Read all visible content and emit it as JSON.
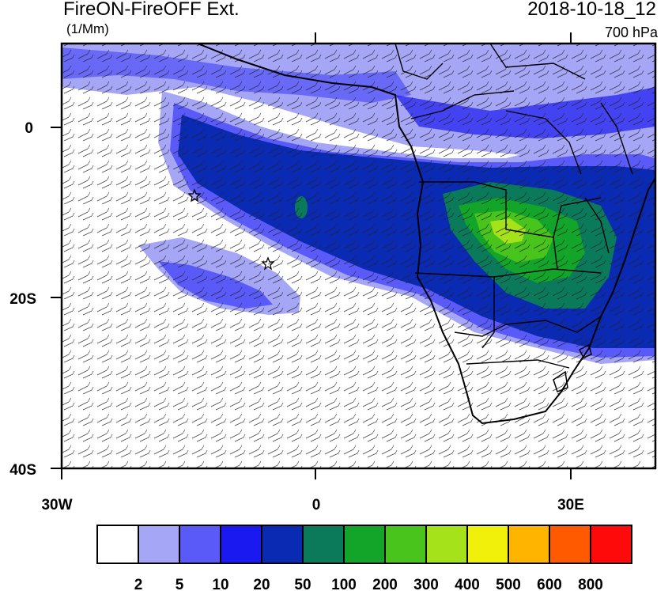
{
  "header": {
    "title": "FireON-FireOFF Ext.",
    "units": "(1/Mm)",
    "timestamp": "2018-10-18_12",
    "level": "700 hPa"
  },
  "map": {
    "lon_range": [
      -30,
      40
    ],
    "lat_range": [
      -40,
      10
    ],
    "lon_ticks": [
      {
        "value": -30,
        "label": "30W"
      },
      {
        "value": 0,
        "label": "0"
      },
      {
        "value": 30,
        "label": "30E"
      }
    ],
    "lat_ticks": [
      {
        "value": 0,
        "label": "0"
      },
      {
        "value": -20,
        "label": "20S"
      },
      {
        "value": -40,
        "label": "40S"
      }
    ],
    "markers": [
      {
        "type": "star",
        "lon": -14.5,
        "lat": -8
      },
      {
        "type": "star",
        "lon": -5.7,
        "lat": -16
      }
    ]
  },
  "colorbar": {
    "colors": [
      "#ffffff",
      "#a6a6f7",
      "#5a5af8",
      "#1a1af0",
      "#0a2ab4",
      "#0a7a5a",
      "#12a52a",
      "#48c41c",
      "#a6e21a",
      "#f0f00a",
      "#ffb400",
      "#ff5a00",
      "#ff0a0a"
    ],
    "labels": [
      "2",
      "5",
      "10",
      "20",
      "50",
      "100",
      "200",
      "300",
      "400",
      "500",
      "600",
      "800"
    ]
  }
}
